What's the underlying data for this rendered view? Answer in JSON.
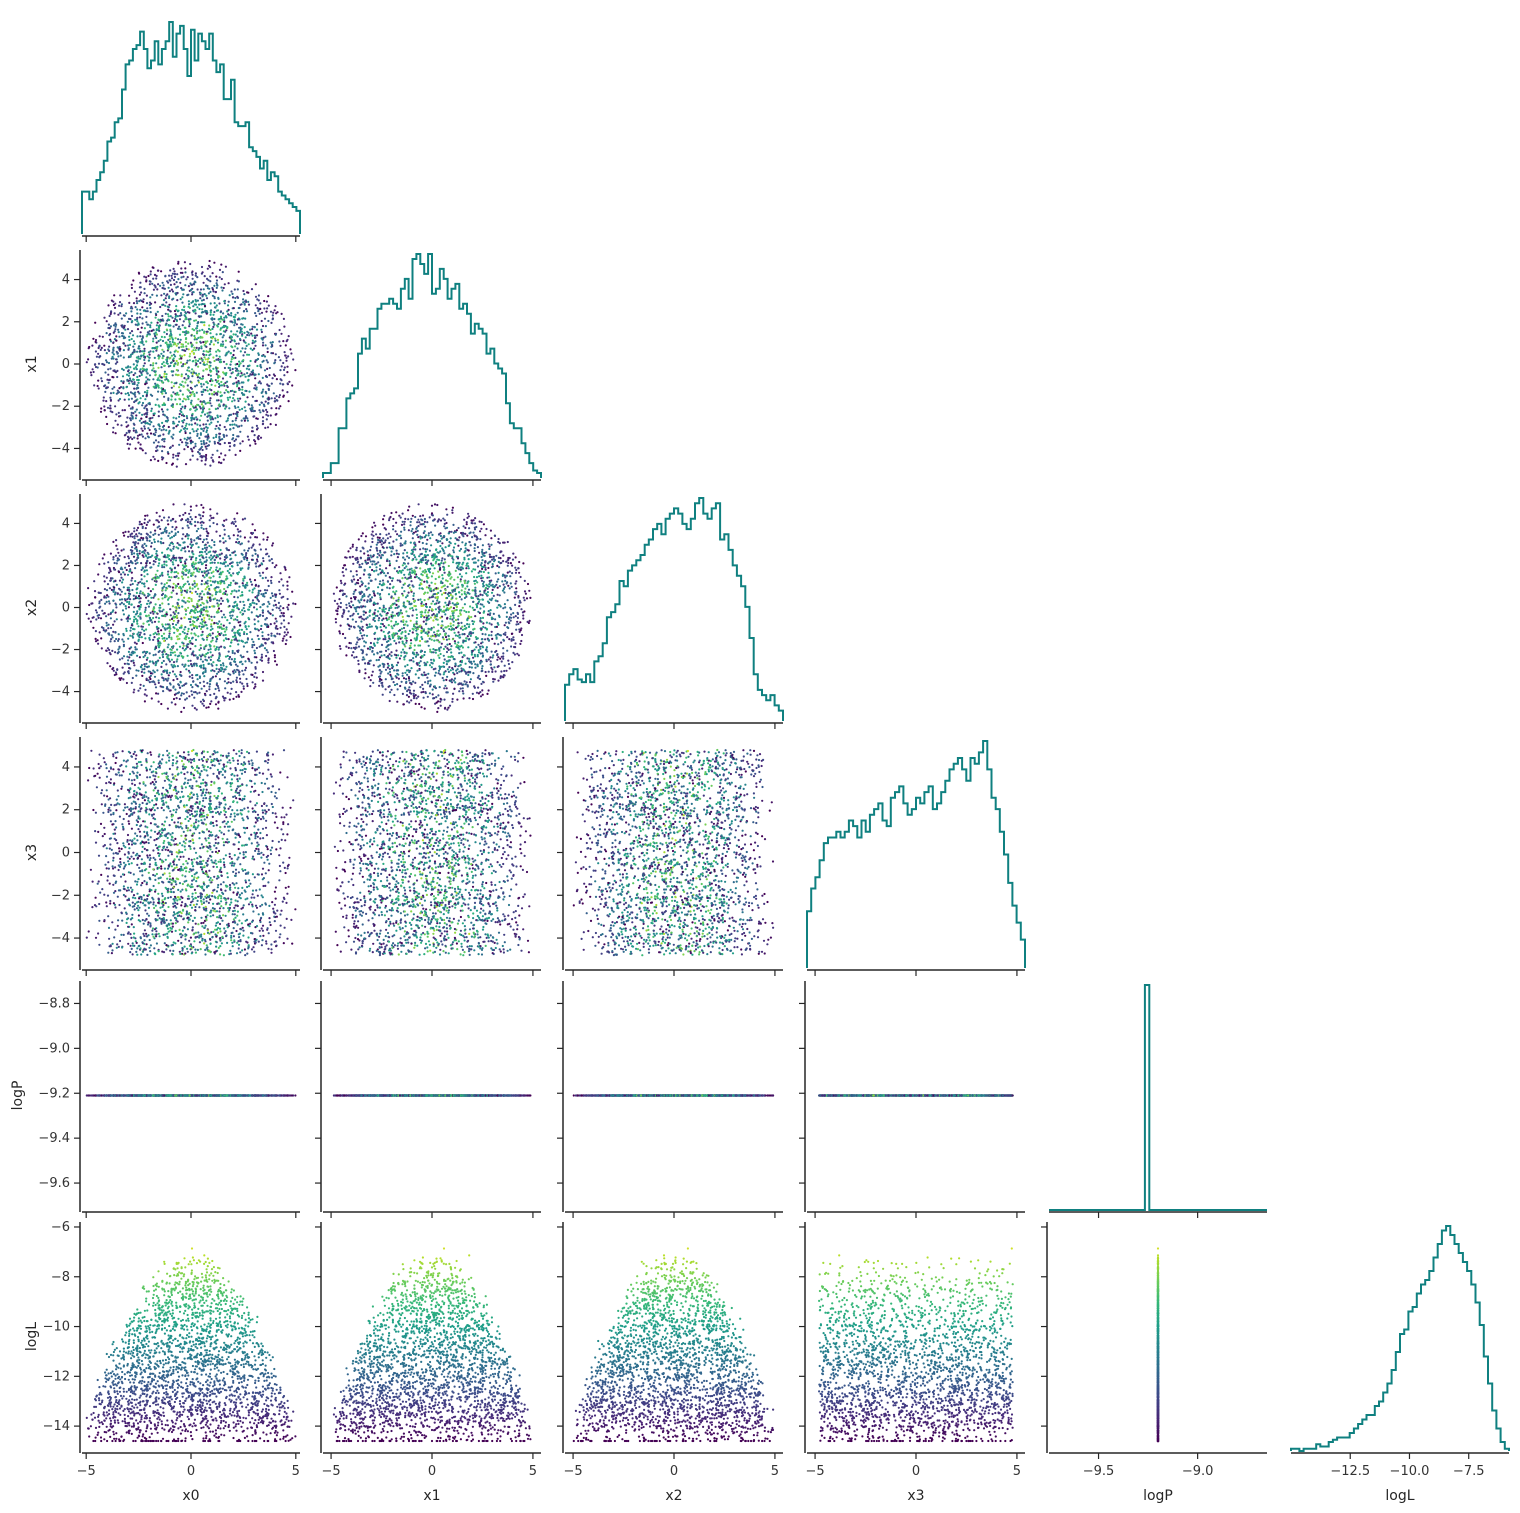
{
  "chart_data": {
    "type": "corner",
    "variables": [
      "x0",
      "x1",
      "x2",
      "x3",
      "logP",
      "logL"
    ],
    "colors": {
      "hist_line": "#0f8080",
      "axis": "#262626",
      "colormap": "viridis",
      "colormap_variable": "logL"
    },
    "ranges": {
      "x0": [
        -5.2,
        5.2
      ],
      "x1": [
        -5.4,
        5.4
      ],
      "x2": [
        -5.4,
        5.4
      ],
      "x3": [
        -5.4,
        5.4
      ],
      "logP": [
        -9.72,
        -8.7
      ],
      "logL": [
        -15.0,
        -5.8
      ]
    },
    "ticks": {
      "x0": [
        -5,
        0,
        5
      ],
      "x1": [
        -4,
        -2,
        0,
        2,
        4
      ],
      "x2": [
        -4,
        -2,
        0,
        2,
        4
      ],
      "x3": [
        -4,
        -2,
        0,
        2,
        4
      ],
      "logP": [
        -9.6,
        -9.4,
        -9.2,
        -9.0,
        -8.8
      ],
      "logL": [
        -14,
        -12,
        -10,
        -8,
        -6
      ]
    },
    "bottom_ticks": {
      "x0": {
        "values": [
          -5,
          0,
          5
        ],
        "labels": [
          "−5",
          "0",
          "5"
        ]
      },
      "x1": {
        "values": [
          -5,
          0,
          5
        ],
        "labels": [
          "−5",
          "0",
          "5"
        ]
      },
      "x2": {
        "values": [
          -5,
          0,
          5
        ],
        "labels": [
          "−5",
          "0",
          "5"
        ]
      },
      "x3": {
        "values": [
          -5,
          0,
          5
        ],
        "labels": [
          "−5",
          "0",
          "5"
        ]
      },
      "logP": {
        "values": [
          -9.5,
          -9.0
        ],
        "labels": [
          "−9.5",
          "−9.0"
        ],
        "range": [
          -9.75,
          -8.65
        ]
      },
      "logL": {
        "values": [
          -12.5,
          -10.0,
          -7.5
        ],
        "labels": [
          "−12.5",
          "−10.0",
          "−7.5"
        ],
        "range": [
          -15.0,
          -5.8
        ]
      }
    },
    "left_ticks": {
      "x1": [
        "4",
        "2",
        "0",
        "−2",
        "−4"
      ],
      "x2": [
        "4",
        "2",
        "0",
        "−2",
        "−4"
      ],
      "x3": [
        "4",
        "2",
        "0",
        "−2",
        "−4"
      ],
      "logP": [
        "−8.8",
        "−9.0",
        "−9.2",
        "−9.4",
        "−9.6"
      ],
      "logL": [
        "−6",
        "−8",
        "−10",
        "−12",
        "−14"
      ]
    },
    "logP_constant": -9.21,
    "logL_model": {
      "peak": -7.1,
      "slope": 0.27
    },
    "histograms": {
      "x0": [
        22,
        22,
        18,
        22,
        28,
        32,
        38,
        48,
        50,
        58,
        60,
        75,
        88,
        90,
        96,
        98,
        105,
        96,
        86,
        90,
        100,
        88,
        96,
        100,
        110,
        92,
        104,
        108,
        96,
        82,
        106,
        90,
        104,
        100,
        96,
        104,
        90,
        84,
        88,
        70,
        70,
        80,
        58,
        56,
        56,
        58,
        45,
        43,
        40,
        34,
        38,
        28,
        32,
        30,
        22,
        20,
        18,
        16,
        14,
        12
      ],
      "x1": [
        2,
        2,
        6,
        6,
        20,
        20,
        32,
        34,
        36,
        50,
        56,
        52,
        60,
        60,
        68,
        70,
        70,
        72,
        70,
        68,
        76,
        80,
        72,
        88,
        90,
        86,
        82,
        90,
        74,
        76,
        84,
        80,
        72,
        76,
        78,
        68,
        70,
        66,
        58,
        62,
        60,
        58,
        50,
        52,
        46,
        44,
        42,
        30,
        22,
        20,
        20,
        14,
        10,
        6,
        3,
        2
      ],
      "x2": [
        14,
        18,
        20,
        16,
        15,
        18,
        15,
        23,
        25,
        30,
        40,
        42,
        45,
        54,
        52,
        58,
        60,
        62,
        64,
        68,
        70,
        74,
        76,
        72,
        78,
        80,
        82,
        80,
        76,
        74,
        78,
        84,
        86,
        80,
        78,
        82,
        84,
        70,
        72,
        66,
        60,
        56,
        52,
        44,
        32,
        18,
        12,
        10,
        8,
        10,
        6,
        4
      ],
      "x3": [
        20,
        28,
        32,
        38,
        44,
        46,
        46,
        48,
        46,
        48,
        52,
        50,
        46,
        52,
        48,
        54,
        56,
        58,
        52,
        50,
        60,
        62,
        64,
        58,
        54,
        56,
        60,
        58,
        62,
        64,
        56,
        58,
        62,
        66,
        70,
        72,
        74,
        70,
        66,
        74,
        72,
        76,
        80,
        70,
        60,
        56,
        48,
        40,
        30,
        22,
        16,
        10
      ],
      "logP": [
        0,
        0,
        0,
        0,
        0,
        0,
        0,
        0,
        0,
        0,
        0,
        0,
        0,
        0,
        0,
        0,
        0,
        0,
        0,
        0,
        0,
        0,
        100,
        0,
        0,
        0,
        0,
        0,
        0,
        0,
        0,
        0,
        0,
        0,
        0,
        0,
        0,
        0,
        0,
        0,
        0,
        0,
        0,
        0,
        0,
        0,
        0,
        0,
        0,
        0
      ],
      "logL": [
        1,
        1,
        0,
        1,
        1,
        1,
        3,
        2,
        2,
        4,
        5,
        6,
        6,
        6,
        8,
        10,
        12,
        14,
        16,
        16,
        20,
        22,
        26,
        30,
        36,
        44,
        52,
        54,
        62,
        64,
        70,
        74,
        76,
        80,
        86,
        92,
        98,
        100,
        96,
        92,
        88,
        84,
        80,
        74,
        66,
        56,
        42,
        30,
        18,
        10,
        4,
        1
      ]
    },
    "n_samples": 2400
  }
}
